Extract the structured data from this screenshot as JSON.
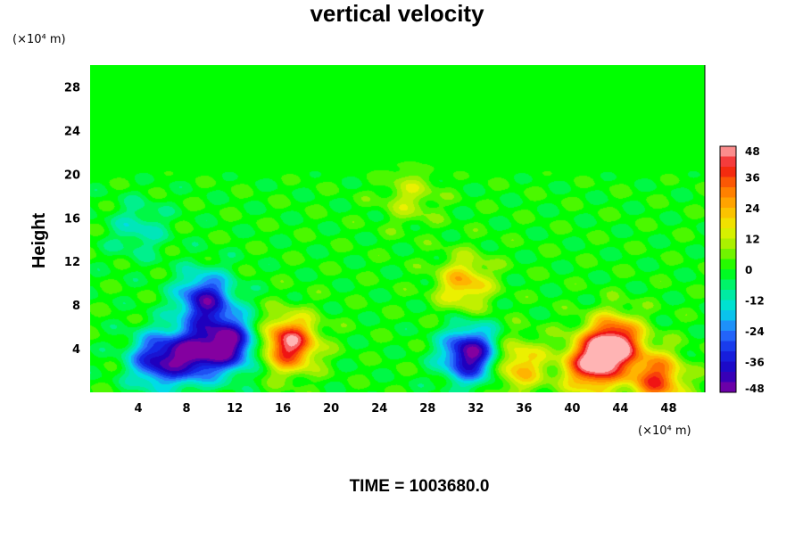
{
  "chart_data": {
    "type": "heatmap",
    "title": "vertical velocity",
    "ylabel": "Height",
    "y_unit": "(×10⁴ m)",
    "x_unit": "(×10⁴ m)",
    "xlim": [
      0,
      51
    ],
    "ylim": [
      0,
      30
    ],
    "x_ticks": [
      "4",
      "8",
      "12",
      "16",
      "20",
      "24",
      "28",
      "32",
      "36",
      "40",
      "44",
      "48"
    ],
    "y_ticks": [
      "28",
      "24",
      "20",
      "16",
      "12",
      "8",
      "4"
    ],
    "colorbar": {
      "range": [
        -48,
        48
      ],
      "ticks": [
        "48",
        "36",
        "24",
        "12",
        "0",
        "-12",
        "-24",
        "-36",
        "-48"
      ]
    },
    "features": [
      {
        "x": 5.5,
        "y": 3.0,
        "value": -36
      },
      {
        "x": 8.5,
        "y": 3.5,
        "value": -40
      },
      {
        "x": 11.5,
        "y": 4.5,
        "value": -46
      },
      {
        "x": 9.5,
        "y": 8.5,
        "value": -40
      },
      {
        "x": 16.5,
        "y": 4.5,
        "value": 46
      },
      {
        "x": 31.5,
        "y": 3.5,
        "value": -48
      },
      {
        "x": 43.5,
        "y": 4.5,
        "value": 50
      },
      {
        "x": 41.5,
        "y": 2.5,
        "value": 42
      },
      {
        "x": 47.0,
        "y": 1.2,
        "value": 36
      },
      {
        "x": 35.5,
        "y": 2.5,
        "value": 24
      },
      {
        "x": 31.0,
        "y": 10.0,
        "value": 24
      },
      {
        "x": 26.5,
        "y": 18.0,
        "value": 12
      },
      {
        "x": 4.0,
        "y": 15.0,
        "value": -12
      }
    ],
    "grid": false
  },
  "footer": {
    "time_label": "TIME = 1003680.0"
  }
}
